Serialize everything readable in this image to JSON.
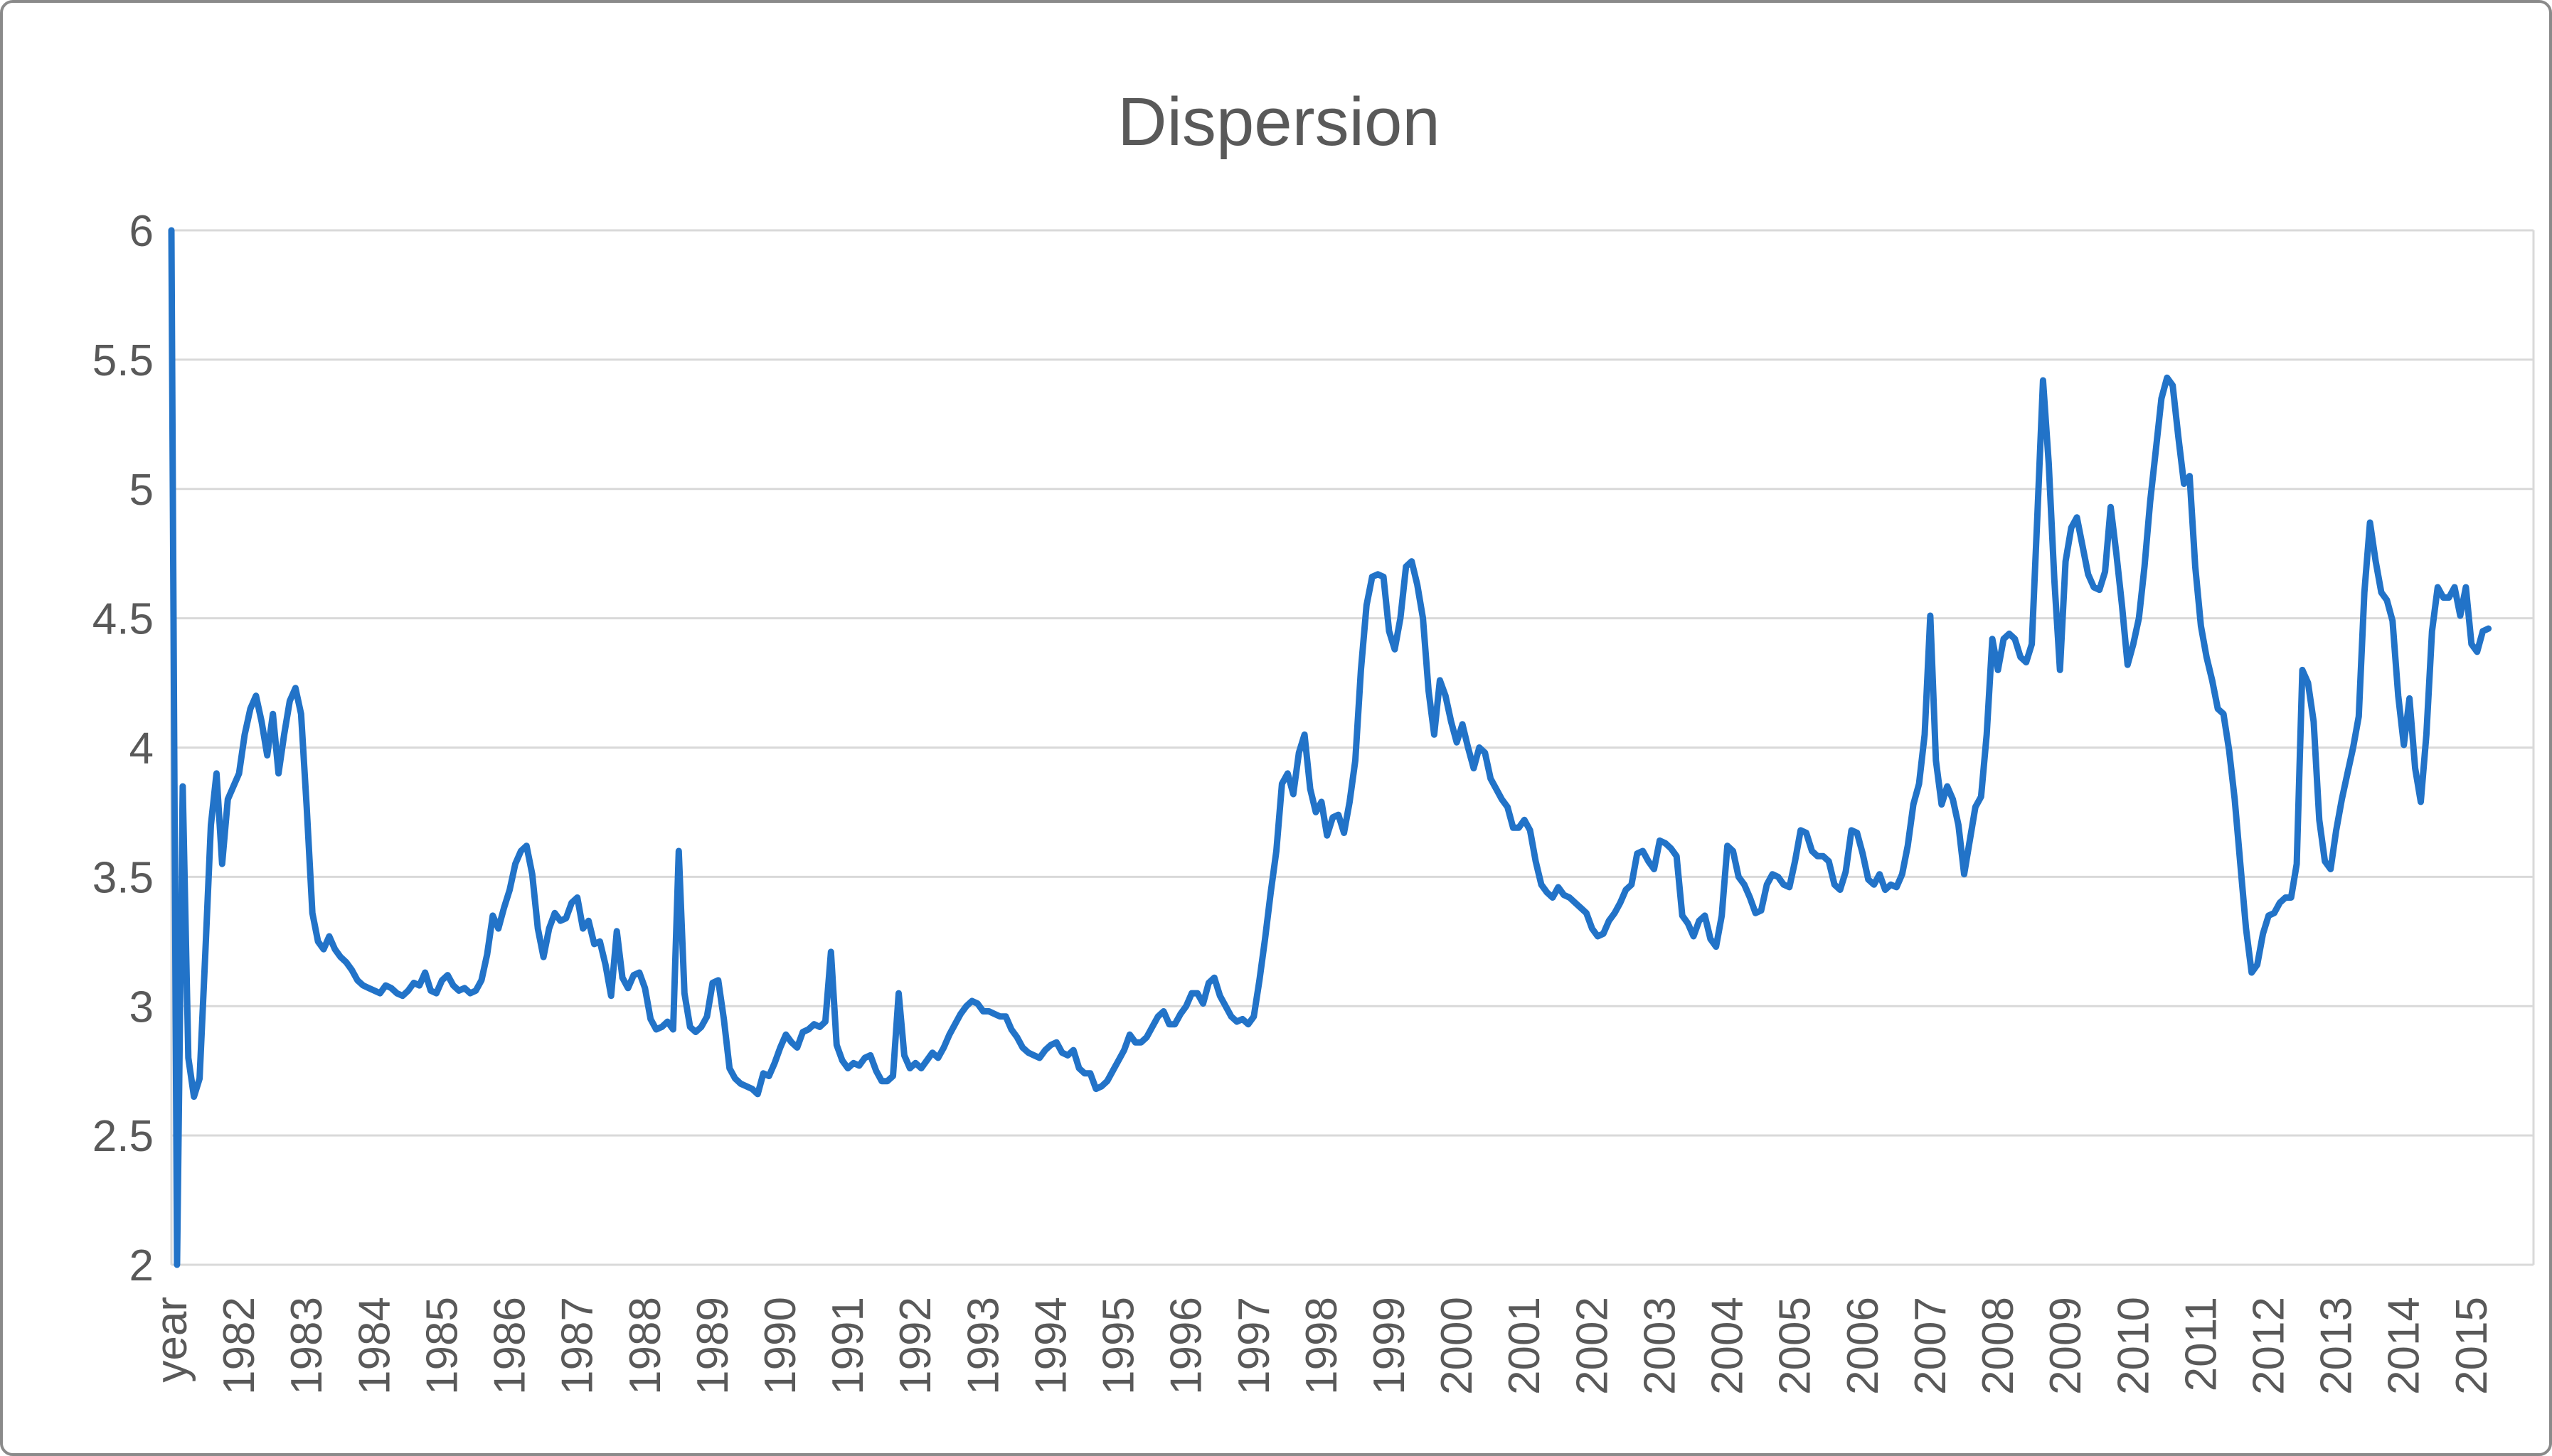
{
  "chart_data": {
    "type": "line",
    "title": "Dispersion",
    "xlabel": "",
    "ylabel": "",
    "ylim": [
      2,
      6
    ],
    "y_tick_step": 0.5,
    "y_tick_labels": [
      "6",
      "5.5",
      "5",
      "4.5",
      "4",
      "3.5",
      "3",
      "2.5",
      "2"
    ],
    "grid": "horizontal",
    "legend_position": "none",
    "x_axis": {
      "labels": [
        "year",
        "1982",
        "1983",
        "1984",
        "1985",
        "1986",
        "1987",
        "1988",
        "1989",
        "1990",
        "1991",
        "1992",
        "1993",
        "1994",
        "1995",
        "1996",
        "1997",
        "1998",
        "1999",
        "2000",
        "2001",
        "2002",
        "2003",
        "2004",
        "2005",
        "2006",
        "2007",
        "2008",
        "2009",
        "2010",
        "2011",
        "2012",
        "2013",
        "2014",
        "2015"
      ],
      "label_category_indices": [
        0,
        12,
        24,
        36,
        48,
        60,
        72,
        84,
        96,
        108,
        120,
        132,
        144,
        156,
        168,
        180,
        192,
        204,
        216,
        228,
        240,
        252,
        264,
        276,
        288,
        300,
        312,
        324,
        336,
        348,
        360,
        372,
        384,
        396,
        408
      ],
      "n_categories": 420,
      "label_rotation_deg": -90
    },
    "series": [
      {
        "name": "Dispersion",
        "note_artifact": "first two points form a clipped full-height vertical stroke at the left plot edge",
        "values": [
          6.0,
          2.0,
          3.85,
          2.8,
          2.65,
          2.72,
          3.2,
          3.7,
          3.9,
          3.55,
          3.8,
          3.85,
          3.9,
          4.05,
          4.15,
          4.2,
          4.1,
          3.97,
          4.13,
          3.9,
          4.05,
          4.18,
          4.23,
          4.13,
          3.77,
          3.36,
          3.25,
          3.22,
          3.27,
          3.22,
          3.19,
          3.17,
          3.14,
          3.1,
          3.08,
          3.07,
          3.06,
          3.05,
          3.08,
          3.07,
          3.05,
          3.04,
          3.06,
          3.09,
          3.08,
          3.13,
          3.06,
          3.05,
          3.1,
          3.12,
          3.08,
          3.06,
          3.07,
          3.05,
          3.06,
          3.1,
          3.2,
          3.35,
          3.3,
          3.38,
          3.45,
          3.55,
          3.6,
          3.62,
          3.51,
          3.3,
          3.19,
          3.3,
          3.36,
          3.33,
          3.34,
          3.4,
          3.42,
          3.3,
          3.33,
          3.24,
          3.25,
          3.16,
          3.04,
          3.29,
          3.11,
          3.07,
          3.12,
          3.13,
          3.07,
          2.95,
          2.91,
          2.92,
          2.94,
          2.91,
          3.6,
          3.05,
          2.92,
          2.9,
          2.92,
          2.96,
          3.09,
          3.1,
          2.95,
          2.76,
          2.72,
          2.7,
          2.69,
          2.68,
          2.66,
          2.74,
          2.73,
          2.78,
          2.84,
          2.89,
          2.86,
          2.84,
          2.9,
          2.91,
          2.93,
          2.92,
          2.94,
          3.21,
          2.85,
          2.79,
          2.76,
          2.78,
          2.77,
          2.8,
          2.81,
          2.75,
          2.71,
          2.71,
          2.73,
          3.05,
          2.81,
          2.76,
          2.78,
          2.76,
          2.79,
          2.82,
          2.8,
          2.84,
          2.89,
          2.93,
          2.97,
          3.0,
          3.02,
          3.01,
          2.98,
          2.98,
          2.97,
          2.96,
          2.96,
          2.91,
          2.88,
          2.84,
          2.82,
          2.81,
          2.8,
          2.83,
          2.85,
          2.86,
          2.82,
          2.81,
          2.83,
          2.76,
          2.74,
          2.74,
          2.68,
          2.69,
          2.71,
          2.75,
          2.79,
          2.83,
          2.89,
          2.86,
          2.86,
          2.88,
          2.92,
          2.96,
          2.98,
          2.93,
          2.93,
          2.97,
          3.0,
          3.05,
          3.05,
          3.01,
          3.09,
          3.11,
          3.04,
          3.0,
          2.96,
          2.94,
          2.95,
          2.93,
          2.96,
          3.1,
          3.26,
          3.44,
          3.6,
          3.86,
          3.9,
          3.82,
          3.98,
          4.05,
          3.84,
          3.75,
          3.79,
          3.66,
          3.73,
          3.74,
          3.67,
          3.79,
          3.95,
          4.3,
          4.55,
          4.66,
          4.67,
          4.66,
          4.45,
          4.38,
          4.5,
          4.7,
          4.72,
          4.63,
          4.5,
          4.22,
          4.05,
          4.26,
          4.2,
          4.1,
          4.02,
          4.09,
          4.0,
          3.92,
          4.0,
          3.98,
          3.88,
          3.84,
          3.8,
          3.77,
          3.69,
          3.69,
          3.72,
          3.68,
          3.56,
          3.47,
          3.44,
          3.42,
          3.46,
          3.43,
          3.42,
          3.4,
          3.38,
          3.36,
          3.3,
          3.27,
          3.28,
          3.33,
          3.36,
          3.4,
          3.45,
          3.47,
          3.59,
          3.6,
          3.56,
          3.53,
          3.64,
          3.63,
          3.61,
          3.58,
          3.35,
          3.32,
          3.27,
          3.33,
          3.35,
          3.26,
          3.23,
          3.35,
          3.62,
          3.6,
          3.5,
          3.47,
          3.42,
          3.36,
          3.37,
          3.47,
          3.51,
          3.5,
          3.47,
          3.46,
          3.56,
          3.68,
          3.67,
          3.6,
          3.58,
          3.58,
          3.56,
          3.47,
          3.45,
          3.52,
          3.68,
          3.67,
          3.59,
          3.49,
          3.47,
          3.51,
          3.45,
          3.47,
          3.46,
          3.51,
          3.62,
          3.78,
          3.86,
          4.05,
          4.51,
          3.95,
          3.78,
          3.85,
          3.8,
          3.7,
          3.51,
          3.64,
          3.77,
          3.81,
          4.05,
          4.42,
          4.3,
          4.42,
          4.44,
          4.42,
          4.35,
          4.33,
          4.4,
          4.9,
          5.42,
          5.1,
          4.65,
          4.3,
          4.72,
          4.85,
          4.89,
          4.78,
          4.67,
          4.62,
          4.61,
          4.68,
          4.93,
          4.75,
          4.55,
          4.32,
          4.4,
          4.5,
          4.7,
          4.95,
          5.15,
          5.35,
          5.43,
          5.4,
          5.2,
          5.02,
          5.05,
          4.7,
          4.47,
          4.35,
          4.26,
          4.15,
          4.13,
          3.99,
          3.8,
          3.55,
          3.3,
          3.13,
          3.16,
          3.28,
          3.35,
          3.36,
          3.4,
          3.42,
          3.42,
          3.55,
          4.3,
          4.25,
          4.1,
          3.72,
          3.56,
          3.53,
          3.68,
          3.8,
          3.9,
          4.0,
          4.12,
          4.6,
          4.87,
          4.72,
          4.6,
          4.57,
          4.49,
          4.2,
          4.01,
          4.19,
          3.92,
          3.79,
          4.05,
          4.45,
          4.62,
          4.58,
          4.58,
          4.62,
          4.51,
          4.62,
          4.4,
          4.37,
          4.45,
          4.46
        ]
      }
    ],
    "colors": {
      "line": "#2273c8",
      "gridline": "#d9d9d9",
      "tick_text": "#595959",
      "title_text": "#595959",
      "chart_border": "#8a8a8a",
      "background": "#ffffff"
    }
  }
}
